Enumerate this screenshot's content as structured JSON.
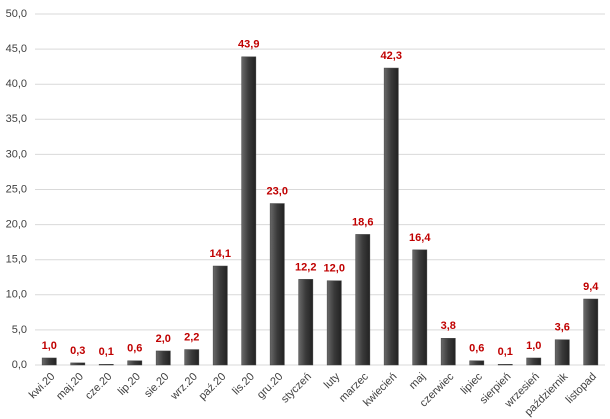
{
  "chart_data": {
    "type": "bar",
    "categories": [
      "kwi.20",
      "maj.20",
      "cze.20",
      "lip.20",
      "sie.20",
      "wrz.20",
      "paź.20",
      "lis.20",
      "gru.20",
      "styczeń",
      "luty",
      "marzec",
      "kwiecień",
      "maj",
      "czerwiec",
      "lipiec",
      "sierpień",
      "wrzesień",
      "październik",
      "listopad"
    ],
    "values": [
      1.0,
      0.3,
      0.1,
      0.6,
      2.0,
      2.2,
      14.1,
      43.9,
      23.0,
      12.2,
      12.0,
      18.6,
      42.3,
      16.4,
      3.8,
      0.6,
      0.1,
      1.0,
      3.6,
      9.4
    ],
    "value_labels": [
      "1,0",
      "0,3",
      "0,1",
      "0,6",
      "2,0",
      "2,2",
      "14,1",
      "43,9",
      "23,0",
      "12,2",
      "12,0",
      "18,6",
      "42,3",
      "16,4",
      "3,8",
      "0,6",
      "0,1",
      "1,0",
      "3,6",
      "9,4"
    ],
    "color": "#404040",
    "label_color": "#c00000",
    "ylim": [
      0,
      50
    ],
    "yticks": [
      {
        "value": 0,
        "label": "0,0"
      },
      {
        "value": 5,
        "label": "5,0"
      },
      {
        "value": 10,
        "label": "10,0"
      },
      {
        "value": 15,
        "label": "15,0"
      },
      {
        "value": 20,
        "label": "20,0"
      },
      {
        "value": 25,
        "label": "25,0"
      },
      {
        "value": 30,
        "label": "30,0"
      },
      {
        "value": 35,
        "label": "35,0"
      },
      {
        "value": 40,
        "label": "40,0"
      },
      {
        "value": 45,
        "label": "45,0"
      },
      {
        "value": 50,
        "label": "50,0"
      }
    ],
    "grid": true
  }
}
